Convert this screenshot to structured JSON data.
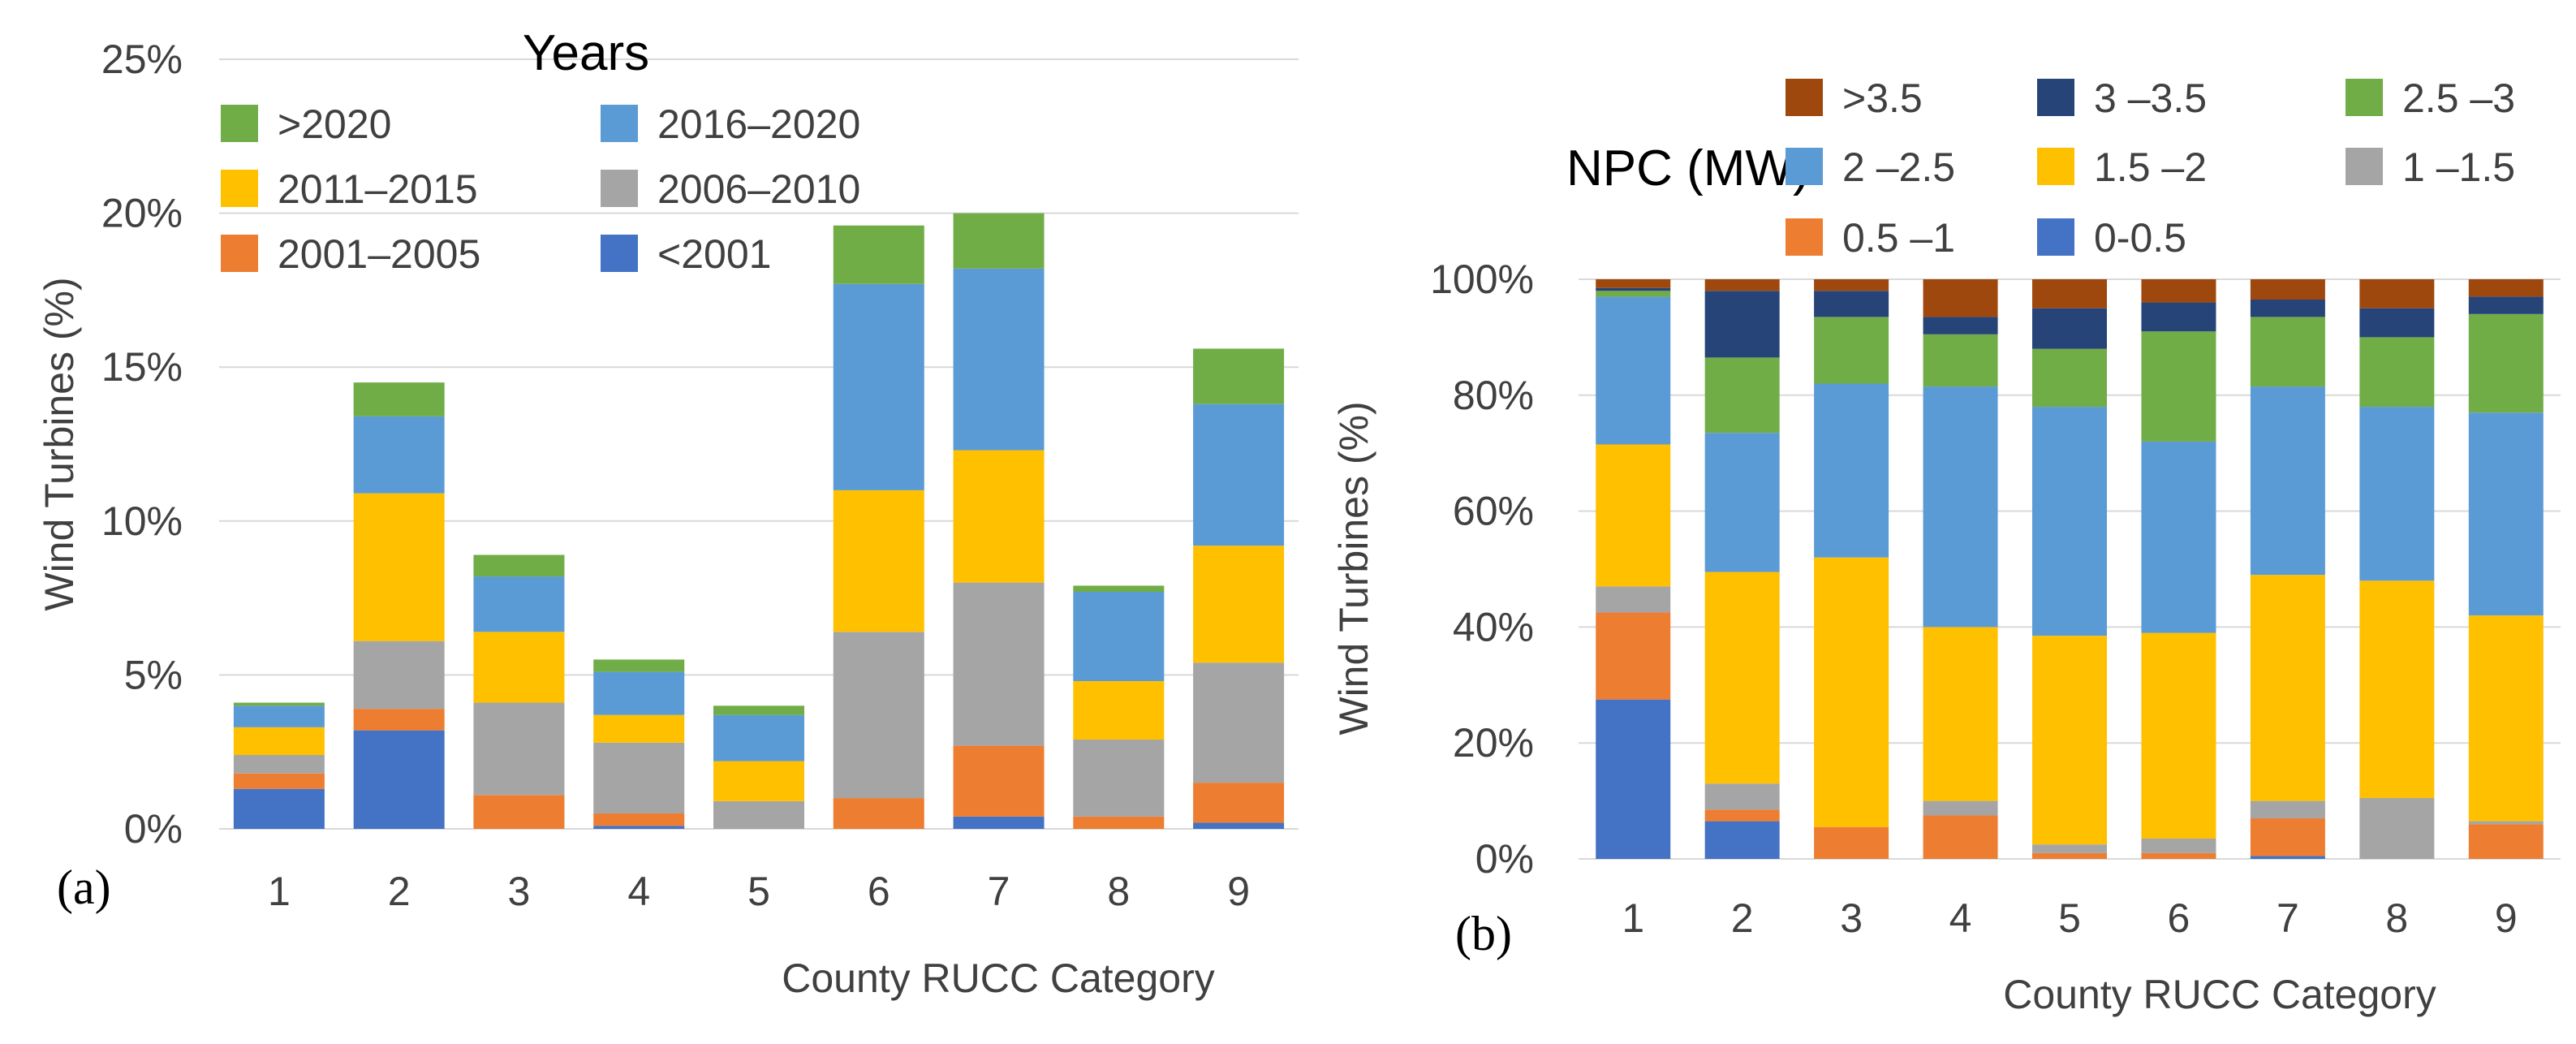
{
  "chart_data": [
    {
      "panel": "(a)",
      "type": "bar",
      "stacked": true,
      "title": "",
      "xlabel": "County RUCC Category",
      "ylabel": "Wind Turbines (%)",
      "ylim": [
        0,
        25
      ],
      "yticks": [
        "0%",
        "5%",
        "10%",
        "15%",
        "20%",
        "25%"
      ],
      "grid": true,
      "legend_title": "Years",
      "legend_position": "top-left",
      "categories": [
        "1",
        "2",
        "3",
        "4",
        "5",
        "6",
        "7",
        "8",
        "9"
      ],
      "series": [
        {
          "name": "<2001",
          "color": "#4472c4",
          "values": [
            1.3,
            3.2,
            0.0,
            0.1,
            0.0,
            0.0,
            0.4,
            0.0,
            0.2
          ]
        },
        {
          "name": "2001–2005",
          "color": "#ed7d31",
          "values": [
            0.5,
            0.7,
            1.1,
            0.4,
            0.0,
            1.0,
            2.3,
            0.4,
            1.3
          ]
        },
        {
          "name": "2006–2010",
          "color": "#a5a5a5",
          "values": [
            0.6,
            2.2,
            3.0,
            2.3,
            0.9,
            5.4,
            5.3,
            2.5,
            3.9
          ]
        },
        {
          "name": "2011–2015",
          "color": "#ffc000",
          "values": [
            0.9,
            4.8,
            2.3,
            0.9,
            1.3,
            4.6,
            4.3,
            1.9,
            3.8
          ]
        },
        {
          "name": "2016–2020",
          "color": "#5b9bd5",
          "values": [
            0.7,
            2.5,
            1.8,
            1.4,
            1.5,
            6.7,
            5.9,
            2.9,
            4.6
          ]
        },
        {
          "name": ">2020",
          "color": "#70ad47",
          "values": [
            0.1,
            1.1,
            0.7,
            0.4,
            0.3,
            1.9,
            1.8,
            0.2,
            1.8
          ]
        }
      ],
      "legend_order": [
        ">2020",
        "2016–2020",
        "2011–2015",
        "2006–2010",
        "2001–2005",
        "<2001"
      ]
    },
    {
      "panel": "(b)",
      "type": "bar",
      "stacked": true,
      "title": "",
      "xlabel": "County RUCC Category",
      "ylabel": "Wind Turbines (%)",
      "ylim": [
        0,
        100
      ],
      "yticks": [
        "0%",
        "20%",
        "40%",
        "60%",
        "80%",
        "100%"
      ],
      "grid": true,
      "legend_title": "NPC (MW)",
      "legend_position": "top",
      "categories": [
        "1",
        "2",
        "3",
        "4",
        "5",
        "6",
        "7",
        "8",
        "9"
      ],
      "series": [
        {
          "name": "0-0.5",
          "color": "#4472c4",
          "values": [
            27.5,
            6.5,
            0.0,
            0.0,
            0.0,
            0.0,
            0.5,
            0.0,
            0.0
          ]
        },
        {
          "name": "0.5 –1",
          "color": "#ed7d31",
          "values": [
            15.0,
            2.0,
            5.5,
            7.5,
            1.0,
            1.0,
            6.5,
            0.0,
            6.0
          ]
        },
        {
          "name": "1 –1.5",
          "color": "#a5a5a5",
          "values": [
            4.5,
            4.5,
            0.0,
            2.5,
            1.5,
            2.5,
            3.0,
            10.5,
            0.5
          ]
        },
        {
          "name": "1.5 –2",
          "color": "#ffc000",
          "values": [
            24.5,
            36.5,
            46.5,
            30.0,
            36.0,
            35.5,
            39.0,
            37.5,
            35.5
          ]
        },
        {
          "name": "2 –2.5",
          "color": "#5b9bd5",
          "values": [
            25.5,
            24.0,
            30.0,
            41.5,
            39.5,
            33.0,
            32.5,
            30.0,
            35.0
          ]
        },
        {
          "name": "2.5 –3",
          "color": "#70ad47",
          "values": [
            1.0,
            13.0,
            11.5,
            9.0,
            10.0,
            19.0,
            12.0,
            12.0,
            17.0
          ]
        },
        {
          "name": "3 –3.5",
          "color": "#264478",
          "values": [
            0.5,
            11.5,
            4.5,
            3.0,
            7.0,
            5.0,
            3.0,
            5.0,
            3.0
          ]
        },
        {
          "name": ">3.5",
          "color": "#9e480e",
          "values": [
            1.5,
            2.0,
            2.0,
            6.5,
            5.0,
            4.0,
            3.5,
            5.0,
            3.0
          ]
        }
      ],
      "legend_order": [
        ">3.5",
        "3 –3.5",
        "2.5 –3",
        "2 –2.5",
        "1.5 –2",
        "1 –1.5",
        "0.5 –1",
        "0-0.5"
      ]
    }
  ]
}
